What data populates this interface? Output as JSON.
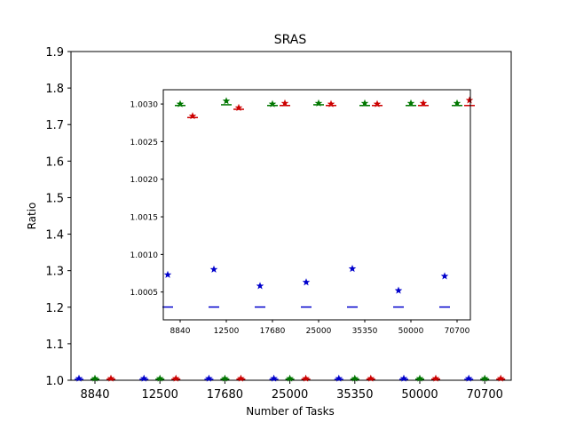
{
  "chart_data": {
    "type": "scatter",
    "title": "SRAS",
    "xlabel": "Number of Tasks",
    "ylabel": "Ratio",
    "categories": [
      "8840",
      "12500",
      "17680",
      "25000",
      "35350",
      "50000",
      "70700"
    ],
    "ylim": [
      1.0,
      1.9
    ],
    "yticks": [
      "1.0",
      "1.1",
      "1.2",
      "1.3",
      "1.4",
      "1.5",
      "1.6",
      "1.7",
      "1.8",
      "1.9"
    ],
    "grid": false,
    "series": [
      {
        "color": "#0000cc",
        "marker": "star",
        "medians": [
          1.0003,
          1.0003,
          1.0003,
          1.0003,
          1.0003,
          1.0003,
          1.0003
        ],
        "outliers": [
          1.00073,
          1.0008,
          1.00058,
          1.00063,
          1.00081,
          1.00052,
          1.00071
        ]
      },
      {
        "color": "#007700",
        "marker": "star",
        "medians": [
          1.00298,
          1.00299,
          1.00298,
          1.00299,
          1.00298,
          1.00298,
          1.00298
        ],
        "outliers": [
          1.003,
          1.00304,
          1.003,
          1.00301,
          1.00301,
          1.00301,
          1.00301
        ]
      },
      {
        "color": "#cc0000",
        "marker": "star",
        "medians": [
          1.00282,
          1.00293,
          1.00298,
          1.00298,
          1.00298,
          1.00298,
          1.00298
        ],
        "outliers": [
          1.00284,
          1.00295,
          1.00301,
          1.003,
          1.003,
          1.00301,
          1.00305
        ]
      }
    ],
    "inset": {
      "ylim": [
        1.00013,
        1.00319
      ],
      "yticks": [
        "1.0005",
        "1.0010",
        "1.0015",
        "1.0020",
        "1.0025",
        "1.0030"
      ],
      "ytick_values": [
        1.0005,
        1.001,
        1.0015,
        1.002,
        1.0025,
        1.003
      ],
      "xticks": [
        "8840",
        "12500",
        "17680",
        "25000",
        "35350",
        "50000",
        "70700"
      ]
    }
  }
}
